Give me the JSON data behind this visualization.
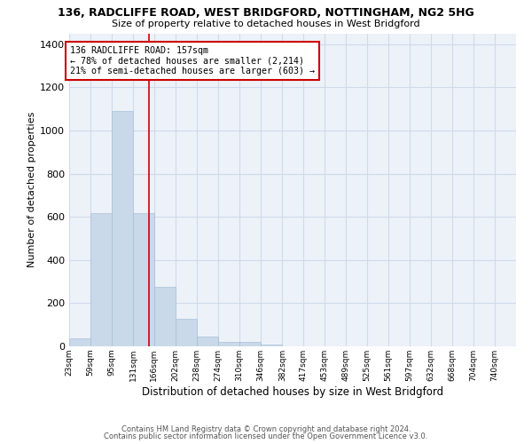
{
  "title": "136, RADCLIFFE ROAD, WEST BRIDGFORD, NOTTINGHAM, NG2 5HG",
  "subtitle": "Size of property relative to detached houses in West Bridgford",
  "xlabel": "Distribution of detached houses by size in West Bridgford",
  "ylabel": "Number of detached properties",
  "footer_line1": "Contains HM Land Registry data © Crown copyright and database right 2024.",
  "footer_line2": "Contains public sector information licensed under the Open Government Licence v3.0.",
  "bar_color": "#c9d9ea",
  "bar_edge_color": "#a8c0d6",
  "grid_color": "#d0daea",
  "background_color": "#edf2f9",
  "vline_color": "#cc0000",
  "property_sqm": 157,
  "annotation_line1": "136 RADCLIFFE ROAD: 157sqm",
  "annotation_line2": "← 78% of detached houses are smaller (2,214)",
  "annotation_line3": "21% of semi-detached houses are larger (603) →",
  "bin_labels": [
    "23sqm",
    "59sqm",
    "95sqm",
    "131sqm",
    "166sqm",
    "202sqm",
    "238sqm",
    "274sqm",
    "310sqm",
    "346sqm",
    "382sqm",
    "417sqm",
    "453sqm",
    "489sqm",
    "525sqm",
    "561sqm",
    "597sqm",
    "632sqm",
    "668sqm",
    "704sqm",
    "740sqm"
  ],
  "bin_left_edges": [
    23,
    59,
    95,
    131,
    166,
    202,
    238,
    274,
    310,
    346,
    382,
    417,
    453,
    489,
    525,
    561,
    597,
    632,
    668,
    704,
    740
  ],
  "bin_width": 36,
  "bar_heights": [
    35,
    615,
    1090,
    615,
    275,
    128,
    45,
    22,
    20,
    10,
    0,
    0,
    0,
    0,
    0,
    0,
    0,
    0,
    0,
    0,
    0
  ],
  "ylim": [
    0,
    1450
  ],
  "yticks": [
    0,
    200,
    400,
    600,
    800,
    1000,
    1200,
    1400
  ],
  "xlim_left": 23,
  "xlim_right": 776
}
